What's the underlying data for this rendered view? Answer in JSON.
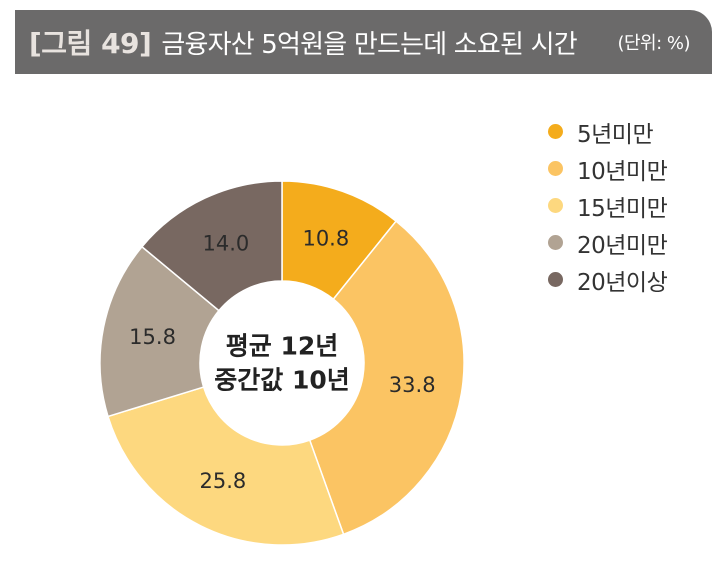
{
  "figure": {
    "number": "[그림 49]",
    "title": "금융자산 5억원을 만드는데 소요된 시간",
    "unit": "(단위: %)"
  },
  "chart_data": {
    "type": "pie",
    "variant": "donut",
    "title": "금융자산 5억원을 만드는데 소요된 시간",
    "unit": "%",
    "categories": [
      "5년미만",
      "10년미만",
      "15년미만",
      "20년미만",
      "20년이상"
    ],
    "values": [
      10.8,
      33.8,
      25.8,
      15.8,
      14.0
    ],
    "colors": [
      "#f4ac1c",
      "#fbc463",
      "#fdd87f",
      "#b1a393",
      "#786861"
    ],
    "center_text": [
      "평균 12년",
      "중간값 10년"
    ],
    "legend_position": "top-right"
  }
}
